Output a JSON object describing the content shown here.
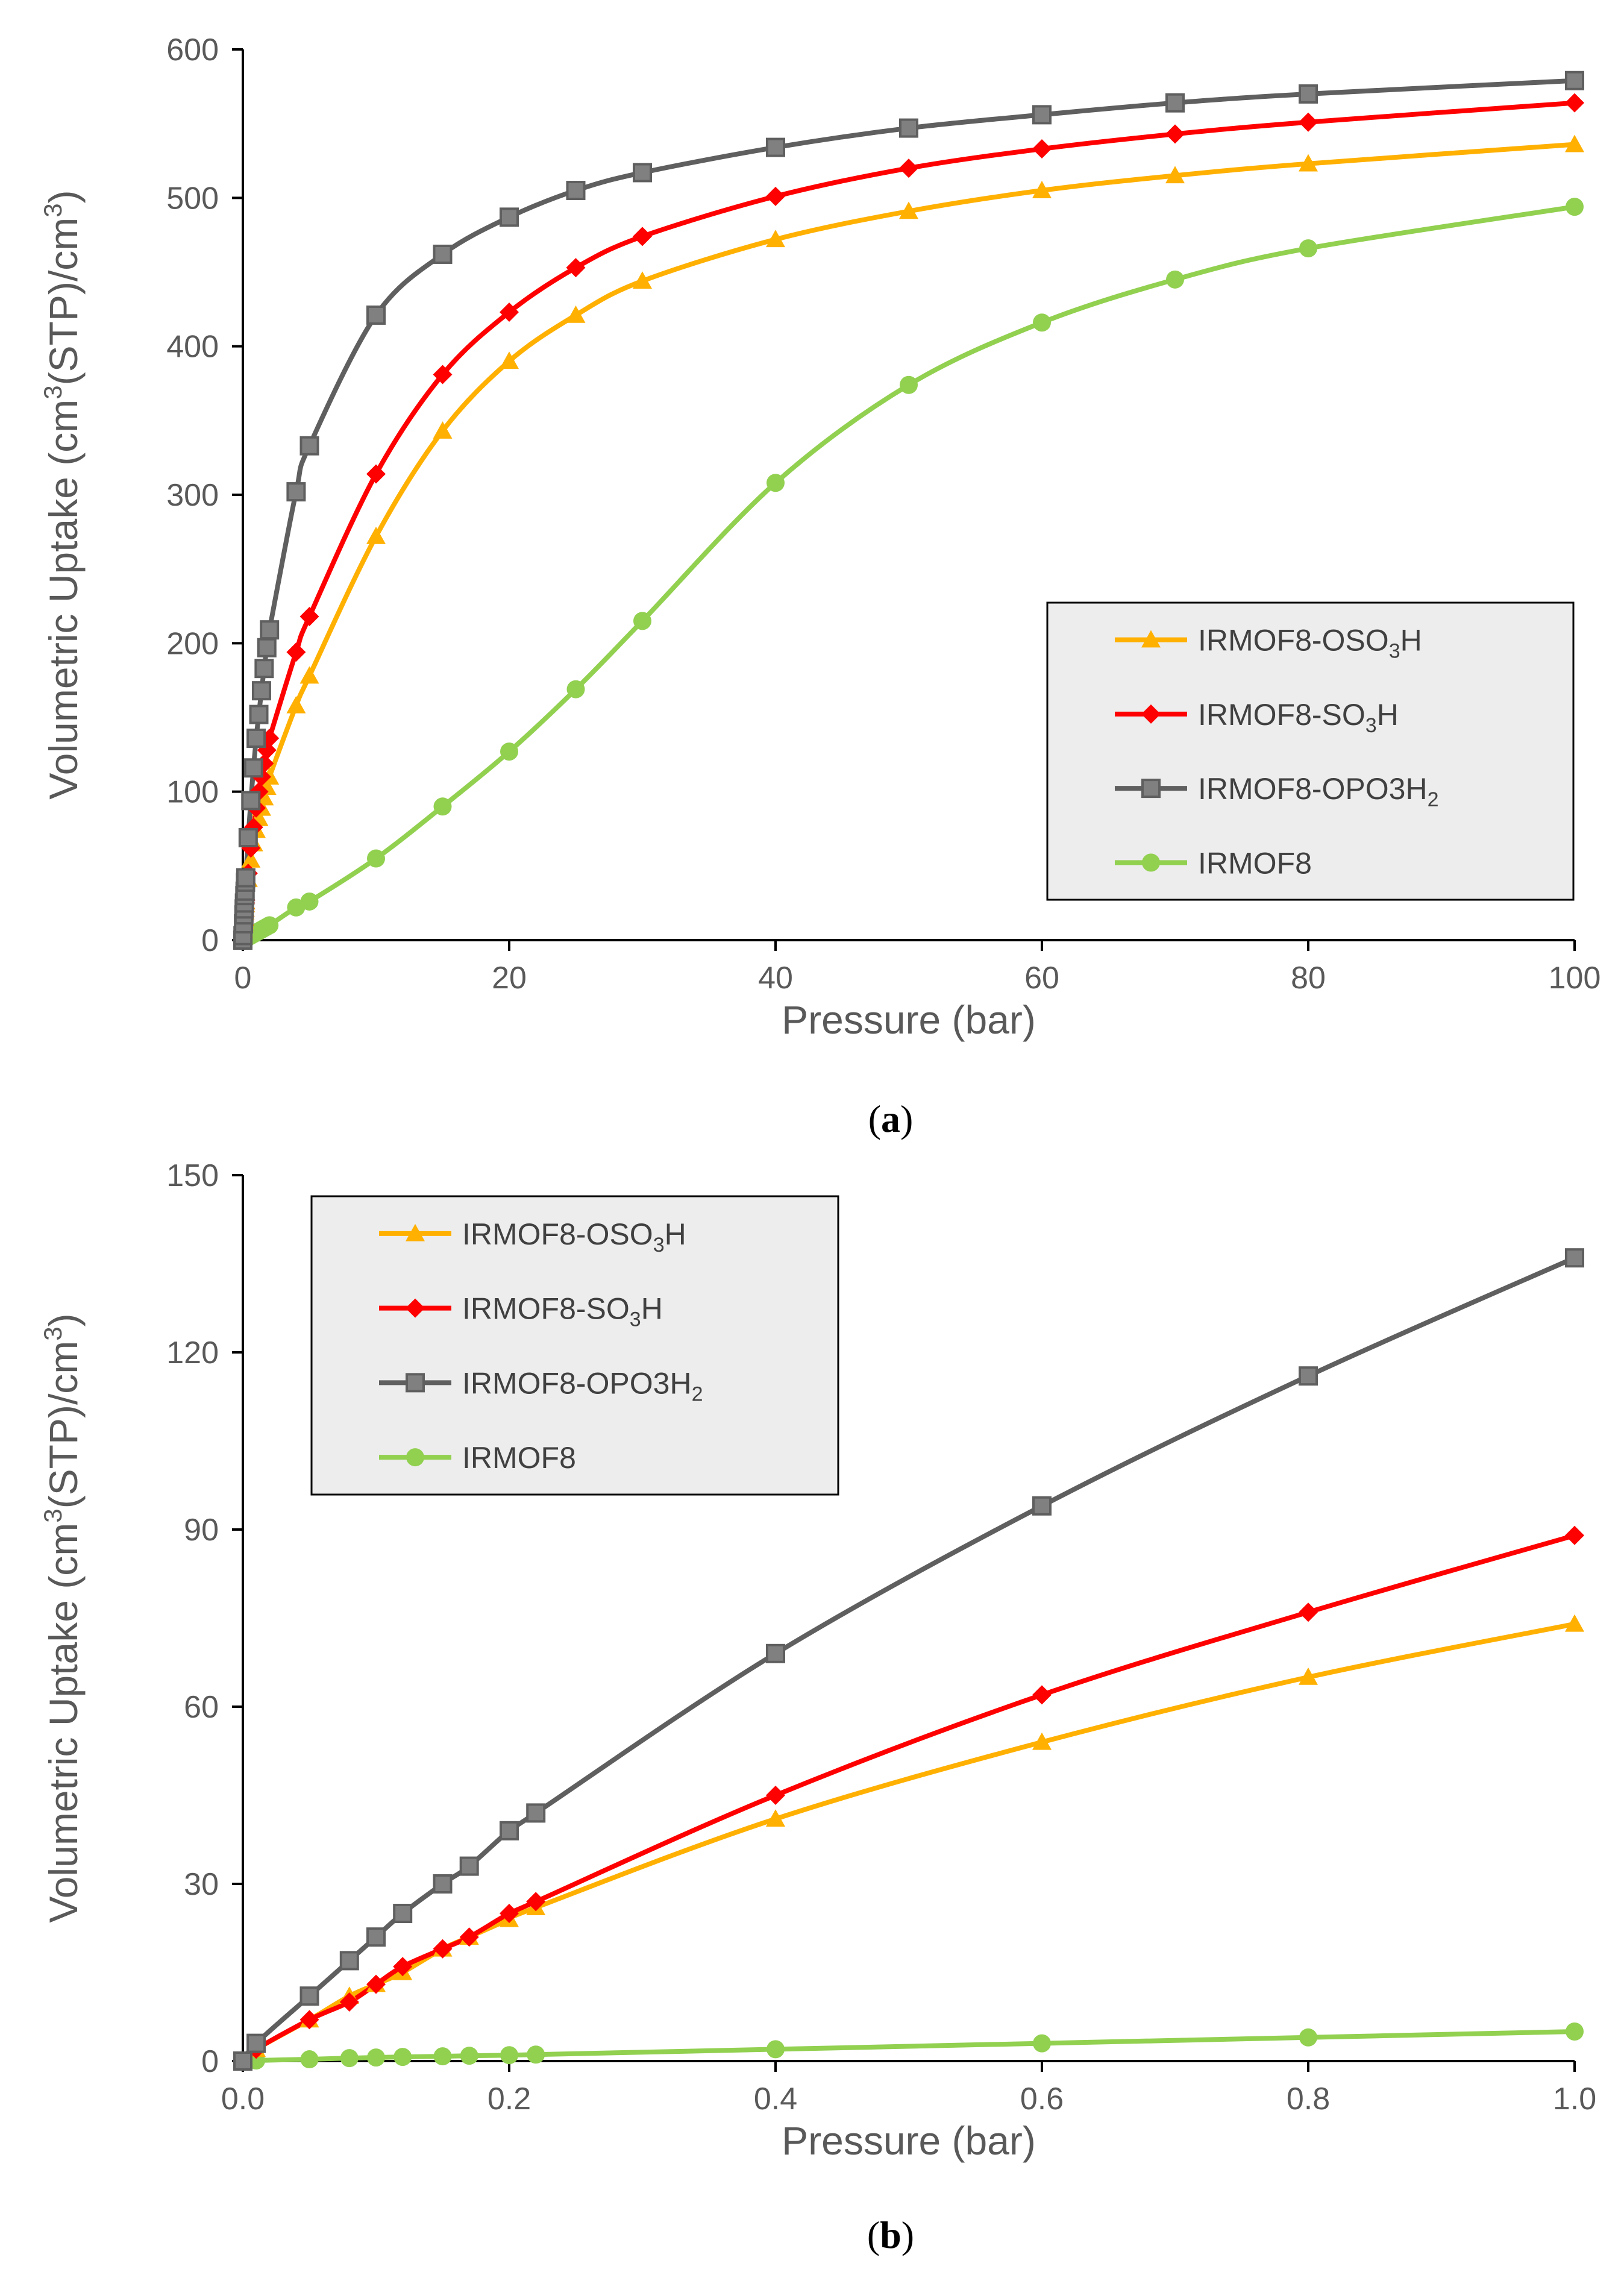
{
  "colors": {
    "IRMOF8-OSO3H": "#FFB000",
    "IRMOF8-SO3H": "#FF0000",
    "IRMOF8-OPO3H2": "#5F5F5F",
    "IRMOF8": "#92D050",
    "axis": "#000000",
    "text": "#595959",
    "legend_bg": "#EDEDED"
  },
  "chart_data": [
    {
      "type": "line",
      "panel": "a",
      "caption": "(a)",
      "caption_letter": "a",
      "xlabel": "Pressure (bar)",
      "ylabel": "Volumetric Uptake (cm3(STP)/cm3)",
      "ylabel_parts": [
        "Volumetric Uptake (cm",
        "3",
        "(STP)/cm",
        "3",
        ")"
      ],
      "xlim": [
        0,
        100
      ],
      "ylim": [
        0,
        600
      ],
      "xticks": [
        0,
        20,
        40,
        60,
        80,
        100
      ],
      "yticks": [
        0,
        100,
        200,
        300,
        400,
        500,
        600
      ],
      "xtick_labels": [
        "0",
        "20",
        "40",
        "60",
        "80",
        "100"
      ],
      "ytick_labels": [
        "0",
        "100",
        "200",
        "300",
        "400",
        "500",
        "600"
      ],
      "grid": false,
      "legend_position": "right",
      "series": [
        {
          "name": "IRMOF8-OSO3H",
          "label_parts": [
            "IRMOF8-OSO",
            "3",
            "H"
          ],
          "marker": "triangle",
          "x": [
            0,
            0.01,
            0.05,
            0.08,
            0.1,
            0.12,
            0.15,
            0.17,
            0.2,
            0.22,
            0.4,
            0.6,
            0.8,
            1,
            1.2,
            1.4,
            1.6,
            1.8,
            2,
            4,
            5,
            10,
            15,
            20,
            25,
            30,
            40,
            50,
            60,
            70,
            80,
            100
          ],
          "y": [
            0,
            2,
            7,
            11,
            13,
            15,
            19,
            21,
            24,
            26,
            41,
            54,
            65,
            74,
            82,
            89,
            96,
            103,
            110,
            158,
            178,
            272,
            343,
            390,
            421,
            444,
            472,
            491,
            505,
            515,
            523,
            536
          ]
        },
        {
          "name": "IRMOF8-SO3H",
          "label_parts": [
            "IRMOF8-SO",
            "3",
            "H"
          ],
          "marker": "diamond",
          "x": [
            0,
            0.01,
            0.05,
            0.08,
            0.1,
            0.12,
            0.15,
            0.17,
            0.2,
            0.22,
            0.4,
            0.6,
            0.8,
            1,
            1.2,
            1.4,
            1.6,
            1.8,
            2,
            4,
            5,
            10,
            15,
            20,
            25,
            30,
            40,
            50,
            60,
            70,
            80,
            100
          ],
          "y": [
            0,
            2,
            7,
            10,
            13,
            16,
            19,
            21,
            25,
            27,
            45,
            62,
            76,
            89,
            100,
            110,
            119,
            128,
            136,
            194,
            218,
            314,
            381,
            423,
            453,
            474,
            501,
            520,
            533,
            543,
            551,
            564
          ]
        },
        {
          "name": "IRMOF8-OPO3H2",
          "label_parts": [
            "IRMOF8-OPO3H",
            "2",
            ""
          ],
          "marker": "square",
          "x": [
            0,
            0.01,
            0.05,
            0.08,
            0.1,
            0.12,
            0.15,
            0.17,
            0.2,
            0.22,
            0.4,
            0.6,
            0.8,
            1,
            1.2,
            1.4,
            1.6,
            1.8,
            2,
            4,
            5,
            10,
            15,
            20,
            25,
            30,
            40,
            50,
            60,
            70,
            80,
            100
          ],
          "y": [
            0,
            3,
            11,
            17,
            21,
            25,
            30,
            33,
            39,
            42,
            69,
            94,
            116,
            136,
            152,
            168,
            183,
            197,
            209,
            302,
            333,
            421,
            462,
            487,
            505,
            517,
            534,
            547,
            556,
            564,
            570,
            579
          ]
        },
        {
          "name": "IRMOF8",
          "label_parts": [
            "IRMOF8",
            "",
            ""
          ],
          "marker": "circle",
          "x": [
            0,
            0.01,
            0.05,
            0.08,
            0.1,
            0.12,
            0.15,
            0.17,
            0.2,
            0.22,
            0.4,
            0.6,
            0.8,
            1,
            1.2,
            1.4,
            1.6,
            1.8,
            2,
            4,
            5,
            10,
            15,
            20,
            25,
            30,
            40,
            50,
            60,
            70,
            80,
            100
          ],
          "y": [
            0,
            0.1,
            0.3,
            0.5,
            0.6,
            0.7,
            0.8,
            0.9,
            1,
            1.1,
            2,
            3,
            4,
            5,
            6,
            7,
            8,
            9,
            10,
            22,
            26,
            55,
            90,
            127,
            169,
            215,
            308,
            374,
            416,
            445,
            466,
            494
          ]
        }
      ]
    },
    {
      "type": "line",
      "panel": "b",
      "caption": "(b)",
      "caption_letter": "b",
      "xlabel": "Pressure (bar)",
      "ylabel": "Volumetric Uptake (cm3(STP)/cm3)",
      "ylabel_parts": [
        "Volumetric Uptake (cm",
        "3",
        "(STP)/cm",
        "3",
        ")"
      ],
      "xlim": [
        0,
        1
      ],
      "ylim": [
        0,
        150
      ],
      "xticks": [
        0,
        0.2,
        0.4,
        0.6,
        0.8,
        1.0
      ],
      "yticks": [
        0,
        30,
        60,
        90,
        120,
        150
      ],
      "xtick_labels": [
        "0.0",
        "0.2",
        "0.4",
        "0.6",
        "0.8",
        "1.0"
      ],
      "ytick_labels": [
        "0",
        "30",
        "60",
        "90",
        "120",
        "150"
      ],
      "grid": false,
      "legend_position": "top-left",
      "series": [
        {
          "name": "IRMOF8-OSO3H",
          "label_parts": [
            "IRMOF8-OSO",
            "3",
            "H"
          ],
          "marker": "triangle",
          "x": [
            0,
            0.01,
            0.05,
            0.08,
            0.1,
            0.12,
            0.15,
            0.17,
            0.2,
            0.22,
            0.4,
            0.6,
            0.8,
            1
          ],
          "y": [
            0,
            2,
            7,
            11,
            13,
            15,
            19,
            21,
            24,
            26,
            41,
            54,
            65,
            74
          ]
        },
        {
          "name": "IRMOF8-SO3H",
          "label_parts": [
            "IRMOF8-SO",
            "3",
            "H"
          ],
          "marker": "diamond",
          "x": [
            0,
            0.01,
            0.05,
            0.08,
            0.1,
            0.12,
            0.15,
            0.17,
            0.2,
            0.22,
            0.4,
            0.6,
            0.8,
            1
          ],
          "y": [
            0,
            2,
            7,
            10,
            13,
            16,
            19,
            21,
            25,
            27,
            45,
            62,
            76,
            89
          ]
        },
        {
          "name": "IRMOF8-OPO3H2",
          "label_parts": [
            "IRMOF8-OPO3H",
            "2",
            ""
          ],
          "marker": "square",
          "x": [
            0,
            0.01,
            0.05,
            0.08,
            0.1,
            0.12,
            0.15,
            0.17,
            0.2,
            0.22,
            0.4,
            0.6,
            0.8,
            1
          ],
          "y": [
            0,
            3,
            11,
            17,
            21,
            25,
            30,
            33,
            39,
            42,
            69,
            94,
            116,
            136
          ]
        },
        {
          "name": "IRMOF8",
          "label_parts": [
            "IRMOF8",
            "",
            ""
          ],
          "marker": "circle",
          "x": [
            0,
            0.01,
            0.05,
            0.08,
            0.1,
            0.12,
            0.15,
            0.17,
            0.2,
            0.22,
            0.4,
            0.6,
            0.8,
            1
          ],
          "y": [
            0,
            0.1,
            0.3,
            0.5,
            0.6,
            0.7,
            0.8,
            0.9,
            1,
            1.1,
            2,
            3,
            4,
            5
          ]
        }
      ]
    }
  ]
}
